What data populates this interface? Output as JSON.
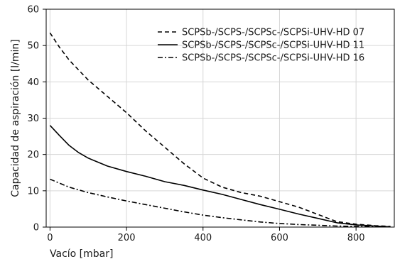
{
  "chart_data": {
    "type": "line",
    "title": "",
    "xlabel": "Vacío [mbar]",
    "ylabel": "Capacidad de aspiración [l/min]",
    "xlim": [
      -10,
      900
    ],
    "ylim": [
      0,
      60
    ],
    "xticks": [
      "0",
      "200",
      "400",
      "600",
      "800"
    ],
    "yticks": [
      "0",
      "10",
      "20",
      "30",
      "40",
      "50",
      "60"
    ],
    "grid": true,
    "legend_position": "top-right",
    "series": [
      {
        "name": "SCPSb-/SCPS-/SCPSc-/SCPSi-UHV-HD 07",
        "style": "dashed",
        "color": "#000000",
        "x": [
          0,
          25,
          50,
          100,
          150,
          200,
          250,
          300,
          350,
          400,
          450,
          500,
          550,
          600,
          650,
          700,
          750,
          800,
          850,
          890
        ],
        "y": [
          53.5,
          49.5,
          46,
          40.5,
          36,
          31.5,
          26.5,
          22,
          17.5,
          13.5,
          11,
          9.5,
          8.5,
          7,
          5.5,
          3.5,
          1.5,
          0.8,
          0.4,
          0.2
        ]
      },
      {
        "name": "SCPSb-/SCPS-/SCPSc-/SCPSi-UHV-HD 11",
        "style": "solid",
        "color": "#000000",
        "x": [
          0,
          25,
          50,
          75,
          100,
          150,
          200,
          250,
          300,
          350,
          400,
          450,
          500,
          550,
          600,
          650,
          700,
          750,
          800,
          850,
          890
        ],
        "y": [
          28,
          25.2,
          22.5,
          20.5,
          19,
          16.8,
          15.3,
          14,
          12.5,
          11.5,
          10.2,
          9,
          7.6,
          6.2,
          4.9,
          3.6,
          2.4,
          1.2,
          0.6,
          0.3,
          0.1
        ]
      },
      {
        "name": "SCPSb-/SCPS-/SCPSc-/SCPSi-UHV-HD 16",
        "style": "dashdot",
        "color": "#000000",
        "x": [
          0,
          50,
          100,
          150,
          200,
          250,
          300,
          350,
          400,
          450,
          500,
          550,
          600,
          650,
          700,
          750,
          800,
          850,
          890
        ],
        "y": [
          13.2,
          11,
          9.5,
          8.3,
          7.2,
          6.2,
          5.2,
          4.2,
          3.3,
          2.6,
          2,
          1.4,
          1,
          0.7,
          0.5,
          0.3,
          0.2,
          0.1,
          0.05
        ]
      }
    ]
  }
}
